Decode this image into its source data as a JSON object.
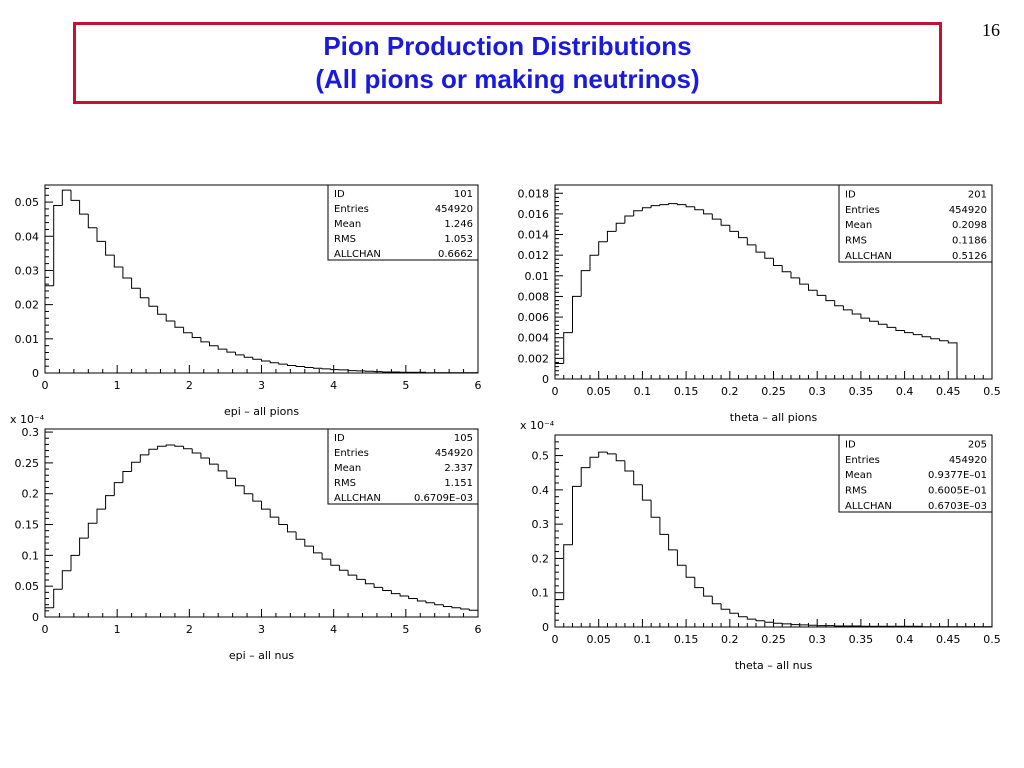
{
  "slide": {
    "title_line1": "Pion Production Distributions",
    "title_line2": "(All pions or making neutrinos)",
    "page_number": "16"
  },
  "chart_data": [
    {
      "type": "bar",
      "histogram": true,
      "xlabel": "epi – all pions",
      "ylabel": "",
      "xlim": [
        0,
        6
      ],
      "ylim": [
        0,
        0.055
      ],
      "xticks": [
        0,
        1,
        2,
        3,
        4,
        5,
        6
      ],
      "xtick_labels": [
        "0",
        "1",
        "2",
        "3",
        "4",
        "5",
        "6"
      ],
      "yticks": [
        0,
        0.01,
        0.02,
        0.03,
        0.04,
        0.05
      ],
      "ytick_labels": [
        "0",
        "0.01",
        "0.02",
        "0.03",
        "0.04",
        "0.05"
      ],
      "exponent_label": "",
      "bin_width": 0.12,
      "values": [
        0.0255,
        0.049,
        0.0535,
        0.0505,
        0.0465,
        0.0425,
        0.0385,
        0.0345,
        0.031,
        0.0278,
        0.0248,
        0.022,
        0.0195,
        0.0172,
        0.0152,
        0.0134,
        0.0118,
        0.0104,
        0.0091,
        0.008,
        0.007,
        0.0061,
        0.0053,
        0.0046,
        0.004,
        0.0035,
        0.003,
        0.0026,
        0.0022,
        0.0019,
        0.0016,
        0.0014,
        0.0012,
        0.001,
        0.0009,
        0.0007,
        0.0006,
        0.0005,
        0.0004,
        0.0003,
        0.0003,
        0.0002,
        0.0002,
        0.0002,
        0.0001,
        0.0001,
        0.0001,
        0.0001,
        0.0001,
        0.0001
      ],
      "stats": [
        {
          "label": "ID",
          "value": "101"
        },
        {
          "label": "Entries",
          "value": "454920"
        },
        {
          "label": "Mean",
          "value": "1.246"
        },
        {
          "label": "RMS",
          "value": "1.053"
        },
        {
          "label": "ALLCHAN",
          "value": "0.6662"
        }
      ]
    },
    {
      "type": "bar",
      "histogram": true,
      "xlabel": "theta – all pions",
      "ylabel": "",
      "xlim": [
        0,
        0.5
      ],
      "ylim": [
        0,
        0.0188
      ],
      "xticks": [
        0,
        0.05,
        0.1,
        0.15,
        0.2,
        0.25,
        0.3,
        0.35,
        0.4,
        0.45,
        0.5
      ],
      "xtick_labels": [
        "0",
        "0.05",
        "0.1",
        "0.15",
        "0.2",
        "0.25",
        "0.3",
        "0.35",
        "0.4",
        "0.45",
        "0.5"
      ],
      "yticks": [
        0,
        0.002,
        0.004,
        0.006,
        0.008,
        0.01,
        0.012,
        0.014,
        0.016,
        0.018
      ],
      "ytick_labels": [
        "0",
        "0.002",
        "0.004",
        "0.006",
        "0.008",
        "0.01",
        "0.012",
        "0.014",
        "0.016",
        "0.018"
      ],
      "exponent_label": "",
      "bin_width": 0.01,
      "values": [
        0.0015,
        0.0045,
        0.008,
        0.0105,
        0.012,
        0.0133,
        0.0143,
        0.0151,
        0.0158,
        0.0163,
        0.0166,
        0.0168,
        0.0169,
        0.017,
        0.0169,
        0.0167,
        0.0164,
        0.016,
        0.0155,
        0.0149,
        0.0143,
        0.0137,
        0.013,
        0.0123,
        0.0117,
        0.011,
        0.0104,
        0.0098,
        0.0092,
        0.0086,
        0.0081,
        0.0076,
        0.0071,
        0.0067,
        0.0063,
        0.0059,
        0.0056,
        0.0053,
        0.005,
        0.0047,
        0.0045,
        0.0043,
        0.0041,
        0.0039,
        0.0037,
        0.0035
      ],
      "stats": [
        {
          "label": "ID",
          "value": "201"
        },
        {
          "label": "Entries",
          "value": "454920"
        },
        {
          "label": "Mean",
          "value": "0.2098"
        },
        {
          "label": "RMS",
          "value": "0.1186"
        },
        {
          "label": "ALLCHAN",
          "value": "0.5126"
        }
      ]
    },
    {
      "type": "bar",
      "histogram": true,
      "xlabel": "epi – all nus",
      "ylabel": "",
      "xlim": [
        0,
        6
      ],
      "ylim": [
        0,
        0.305
      ],
      "xticks": [
        0,
        1,
        2,
        3,
        4,
        5,
        6
      ],
      "xtick_labels": [
        "0",
        "1",
        "2",
        "3",
        "4",
        "5",
        "6"
      ],
      "yticks": [
        0,
        0.05,
        0.1,
        0.15,
        0.2,
        0.25,
        0.3
      ],
      "ytick_labels": [
        "0",
        "0.05",
        "0.1",
        "0.15",
        "0.2",
        "0.25",
        "0.3"
      ],
      "exponent_label": "x 10⁻⁴",
      "bin_width": 0.12,
      "values": [
        0.015,
        0.045,
        0.075,
        0.1,
        0.128,
        0.152,
        0.175,
        0.197,
        0.218,
        0.236,
        0.251,
        0.263,
        0.272,
        0.277,
        0.279,
        0.277,
        0.273,
        0.266,
        0.258,
        0.248,
        0.237,
        0.225,
        0.213,
        0.2,
        0.188,
        0.175,
        0.162,
        0.15,
        0.138,
        0.126,
        0.115,
        0.104,
        0.094,
        0.084,
        0.076,
        0.068,
        0.061,
        0.054,
        0.048,
        0.043,
        0.038,
        0.034,
        0.03,
        0.026,
        0.023,
        0.02,
        0.017,
        0.015,
        0.013,
        0.011
      ],
      "stats": [
        {
          "label": "ID",
          "value": "105"
        },
        {
          "label": "Entries",
          "value": "454920"
        },
        {
          "label": "Mean",
          "value": "2.337"
        },
        {
          "label": "RMS",
          "value": "1.151"
        },
        {
          "label": "ALLCHAN",
          "value": "0.6709E–03"
        }
      ]
    },
    {
      "type": "bar",
      "histogram": true,
      "xlabel": "theta – all nus",
      "ylabel": "",
      "xlim": [
        0,
        0.5
      ],
      "ylim": [
        0,
        0.56
      ],
      "xticks": [
        0,
        0.05,
        0.1,
        0.15,
        0.2,
        0.25,
        0.3,
        0.35,
        0.4,
        0.45,
        0.5
      ],
      "xtick_labels": [
        "0",
        "0.05",
        "0.1",
        "0.15",
        "0.2",
        "0.25",
        "0.3",
        "0.35",
        "0.4",
        "0.45",
        "0.5"
      ],
      "yticks": [
        0,
        0.1,
        0.2,
        0.3,
        0.4,
        0.5
      ],
      "ytick_labels": [
        "0",
        "0.1",
        "0.2",
        "0.3",
        "0.4",
        "0.5"
      ],
      "exponent_label": "x 10⁻⁴",
      "bin_width": 0.01,
      "values": [
        0.08,
        0.24,
        0.41,
        0.465,
        0.495,
        0.51,
        0.505,
        0.485,
        0.455,
        0.415,
        0.37,
        0.32,
        0.27,
        0.225,
        0.18,
        0.145,
        0.115,
        0.09,
        0.068,
        0.052,
        0.04,
        0.03,
        0.023,
        0.018,
        0.014,
        0.011,
        0.009,
        0.007,
        0.006,
        0.005,
        0.004,
        0.004,
        0.003,
        0.003,
        0.003,
        0.002,
        0.002,
        0.002,
        0.002,
        0.002,
        0.002,
        0.002,
        0.001,
        0.001,
        0.001,
        0.001,
        0.001,
        0.001,
        0.001,
        0.001
      ],
      "stats": [
        {
          "label": "ID",
          "value": "205"
        },
        {
          "label": "Entries",
          "value": "454920"
        },
        {
          "label": "Mean",
          "value": "0.9377E–01"
        },
        {
          "label": "RMS",
          "value": "0.6005E–01"
        },
        {
          "label": "ALLCHAN",
          "value": "0.6703E–03"
        }
      ]
    }
  ]
}
